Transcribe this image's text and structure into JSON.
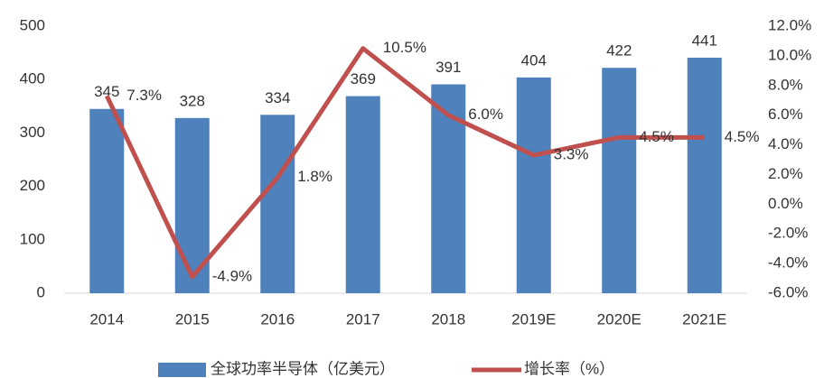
{
  "chart_data": {
    "type": "bar",
    "categories": [
      "2014",
      "2015",
      "2016",
      "2017",
      "2018",
      "2019E",
      "2020E",
      "2021E"
    ],
    "series": [
      {
        "name": "全球功率半导体（亿美元）",
        "color": "#4f81bd",
        "type": "bar",
        "values": [
          345,
          328,
          334,
          369,
          391,
          404,
          422,
          441
        ]
      },
      {
        "name": "增长率（%）",
        "color": "#c0504d",
        "type": "line",
        "axis": "y2",
        "values": [
          7.3,
          -4.9,
          1.8,
          10.5,
          6.0,
          3.3,
          4.5,
          4.5
        ],
        "value_labels": [
          "7.3%",
          "-4.9%",
          "1.8%",
          "10.5%",
          "6.0%",
          "3.3%",
          "4.5%",
          "4.5%"
        ]
      }
    ],
    "ylim": [
      0,
      500
    ],
    "yticks": [
      0,
      100,
      200,
      300,
      400,
      500
    ],
    "y2lim": [
      -6,
      12
    ],
    "y2ticks": [
      {
        "value": -6,
        "label": "-6.0%"
      },
      {
        "value": -4,
        "label": "-4.0%"
      },
      {
        "value": -2,
        "label": "-2.0%"
      },
      {
        "value": 0,
        "label": "0.0%"
      },
      {
        "value": 2,
        "label": "2.0%"
      },
      {
        "value": 4,
        "label": "4.0%"
      },
      {
        "value": 6,
        "label": "6.0%"
      },
      {
        "value": 8,
        "label": "8.0%"
      },
      {
        "value": 10,
        "label": "10.0%"
      },
      {
        "value": 12,
        "label": "12.0%"
      }
    ],
    "grid": false,
    "legend": "bottom"
  }
}
